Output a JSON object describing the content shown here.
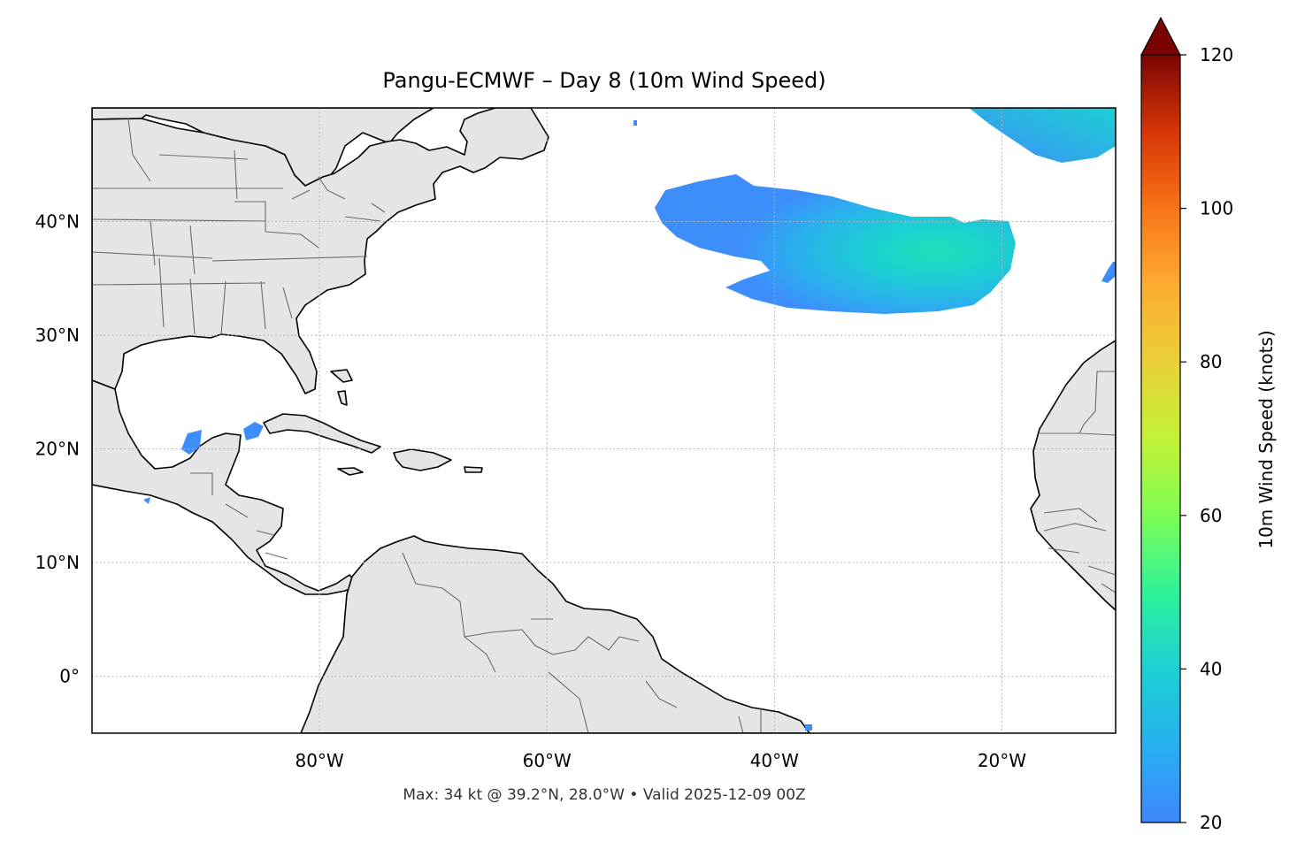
{
  "title": "Pangu-ECMWF – Day 8 (10m Wind Speed)",
  "footer": "Max: 34 kt @ 39.2°N, 28.0°W • Valid 2025-12-09 00Z",
  "map": {
    "lon_range": [
      -100,
      -10
    ],
    "lat_range": [
      -5,
      50
    ],
    "lon_ticks": [
      {
        "value": -80,
        "label": "80°W"
      },
      {
        "value": -60,
        "label": "60°W"
      },
      {
        "value": -40,
        "label": "40°W"
      },
      {
        "value": -20,
        "label": "20°W"
      }
    ],
    "lat_ticks": [
      {
        "value": 0,
        "label": "0°"
      },
      {
        "value": 10,
        "label": "10°N"
      },
      {
        "value": 20,
        "label": "20°N"
      },
      {
        "value": 30,
        "label": "30°N"
      },
      {
        "value": 40,
        "label": "40°N"
      }
    ],
    "gridlines": true,
    "land_color": "#e5e5e5",
    "ocean_color": "#ffffff",
    "max_point": {
      "lat": 39.2,
      "lon": -28.0,
      "value_kt": 34
    }
  },
  "colorbar": {
    "label": "10m Wind Speed (knots)",
    "min": 20,
    "max": 120,
    "extend": "max",
    "ticks": [
      {
        "value": 20,
        "label": "20"
      },
      {
        "value": 40,
        "label": "40"
      },
      {
        "value": 60,
        "label": "60"
      },
      {
        "value": 80,
        "label": "80"
      },
      {
        "value": 100,
        "label": "100"
      },
      {
        "value": 120,
        "label": "120"
      }
    ],
    "colormap": "turbo",
    "stops": [
      "#30123b",
      "#4145ab",
      "#4675ed",
      "#39a2fc",
      "#1bcfd4",
      "#24eca6",
      "#61fc6c",
      "#a4fc3b",
      "#d1e834",
      "#f3c63a",
      "#fe9b2d",
      "#f36315",
      "#d93806",
      "#b11901",
      "#7a0402"
    ],
    "over_color": "#7a0402"
  }
}
